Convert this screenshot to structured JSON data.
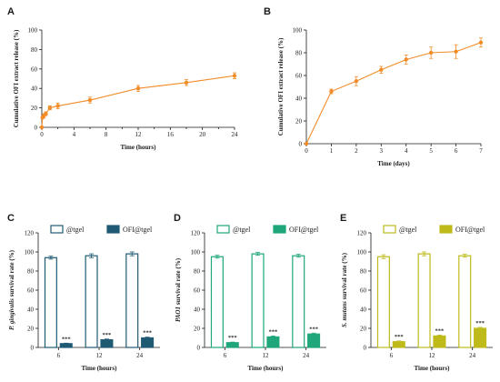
{
  "panels": {
    "A": {
      "letter": "A"
    },
    "B": {
      "letter": "B"
    },
    "C": {
      "letter": "C"
    },
    "D": {
      "letter": "D"
    },
    "E": {
      "letter": "E"
    }
  },
  "chart_data": [
    {
      "id": "A",
      "type": "line",
      "title": "",
      "xlabel": "Time (hours)",
      "ylabel": "Cumulative OFI extract release (%)",
      "xlim": [
        0,
        24
      ],
      "ylim": [
        0,
        100
      ],
      "xticks": [
        0,
        2,
        4,
        6,
        8,
        10,
        12,
        14,
        16,
        18,
        20,
        22,
        24
      ],
      "xticklabels": [
        "0",
        "",
        "4",
        "",
        "8",
        "",
        "12",
        "",
        "16",
        "",
        "20",
        "",
        "24"
      ],
      "yticks": [
        0,
        20,
        40,
        60,
        80,
        100
      ],
      "color": "#F28C28",
      "series": [
        {
          "x": [
            0,
            0.083,
            0.25,
            0.5,
            1,
            2,
            6,
            12,
            18,
            24
          ],
          "y": [
            0,
            10,
            12,
            14,
            20,
            22,
            28,
            40,
            46,
            53
          ],
          "err": [
            0,
            1,
            2,
            2,
            2,
            3,
            3,
            3,
            3,
            3
          ]
        }
      ]
    },
    {
      "id": "B",
      "type": "line",
      "title": "",
      "xlabel": "Time (days)",
      "ylabel": "Cumulative OFI extract release (%)",
      "xlim": [
        0,
        7
      ],
      "ylim": [
        0,
        100
      ],
      "xticks": [
        0,
        1,
        2,
        3,
        4,
        5,
        6,
        7
      ],
      "xticklabels": [
        "0",
        "1",
        "2",
        "3",
        "4",
        "5",
        "6",
        "7"
      ],
      "yticks": [
        0,
        20,
        40,
        60,
        80,
        100
      ],
      "color": "#F28C28",
      "series": [
        {
          "x": [
            0,
            1,
            2,
            3,
            4,
            5,
            6,
            7
          ],
          "y": [
            0,
            46,
            55,
            65,
            74,
            80,
            81,
            89
          ],
          "err": [
            0,
            2,
            4,
            3,
            4,
            5,
            6,
            4
          ]
        }
      ]
    },
    {
      "id": "C",
      "type": "bar",
      "title": "",
      "xlabel": "Time (hours)",
      "ylabel_italic": "P. gingivalis",
      "ylabel_rest": " survival rate (%)",
      "categories": [
        "6",
        "12",
        "24"
      ],
      "ylim": [
        0,
        120
      ],
      "yticks": [
        0,
        20,
        40,
        60,
        80,
        100,
        120
      ],
      "color": "#1F5A73",
      "sig": [
        "***",
        "***",
        "***"
      ],
      "series": [
        {
          "name": "@tgel",
          "values": [
            94,
            96,
            98
          ],
          "err": [
            1.5,
            2,
            2
          ],
          "filled": false
        },
        {
          "name": "OFI@tgel",
          "values": [
            4,
            8,
            10
          ],
          "err": [
            0.5,
            0.8,
            0.8
          ],
          "filled": true
        }
      ]
    },
    {
      "id": "D",
      "type": "bar",
      "title": "",
      "xlabel": "Time (hours)",
      "ylabel_italic": "PAO1",
      "ylabel_rest": " survival rate (%)",
      "categories": [
        "6",
        "12",
        "24"
      ],
      "ylim": [
        0,
        120
      ],
      "yticks": [
        0,
        20,
        40,
        60,
        80,
        100,
        120
      ],
      "color": "#1FA67A",
      "sig": [
        "***",
        "***",
        "***"
      ],
      "series": [
        {
          "name": "@tgel",
          "values": [
            95,
            98,
            96
          ],
          "err": [
            1.5,
            1.5,
            1.5
          ],
          "filled": false
        },
        {
          "name": "OFI@tgel",
          "values": [
            5,
            11,
            14
          ],
          "err": [
            0.6,
            1,
            1
          ],
          "filled": true
        }
      ]
    },
    {
      "id": "E",
      "type": "bar",
      "title": "",
      "xlabel": "Time (hours)",
      "ylabel_italic": "S. mutans",
      "ylabel_rest": " survival rate (%)",
      "categories": [
        "6",
        "12",
        "24"
      ],
      "ylim": [
        0,
        120
      ],
      "yticks": [
        0,
        20,
        40,
        60,
        80,
        100,
        120
      ],
      "color": "#BDBA1A",
      "sig": [
        "***",
        "***",
        "***"
      ],
      "series": [
        {
          "name": "@tgel",
          "values": [
            95,
            98,
            96
          ],
          "err": [
            2,
            2,
            1.5
          ],
          "filled": false
        },
        {
          "name": "OFI@tgel",
          "values": [
            6,
            12,
            20
          ],
          "err": [
            0.8,
            1,
            1
          ],
          "filled": true
        }
      ]
    }
  ]
}
